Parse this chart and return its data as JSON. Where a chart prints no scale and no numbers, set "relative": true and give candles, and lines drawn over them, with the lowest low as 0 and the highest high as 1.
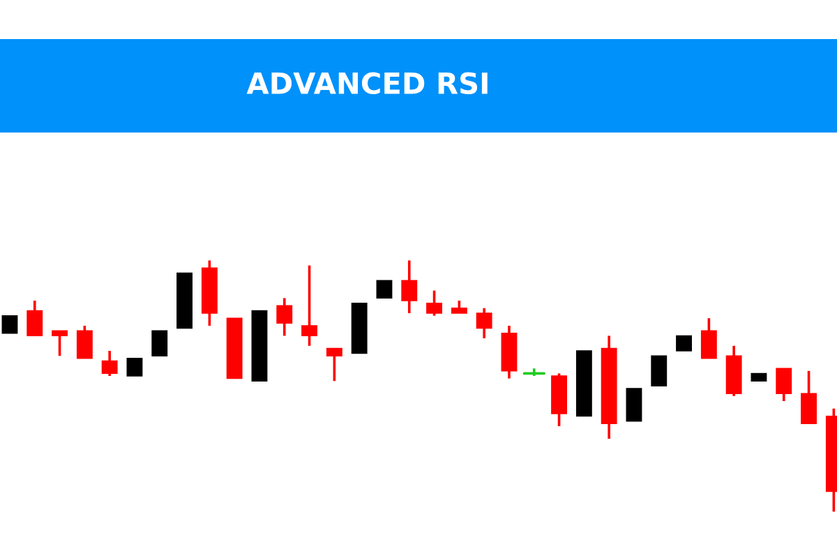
{
  "chart_data": {
    "type": "candlestick",
    "title": "ADVANCED RSI",
    "relative": true,
    "categories": [
      null,
      null,
      null,
      null,
      null,
      null,
      null,
      null,
      null,
      null,
      null,
      null,
      null,
      null,
      null,
      null,
      null,
      null,
      null,
      null,
      null,
      null,
      null,
      null,
      null,
      null,
      null,
      null,
      null,
      null,
      null,
      null,
      null,
      null
    ],
    "ohlc": [
      [
        0.71,
        0.78,
        0.71,
        0.78
      ],
      [
        0.8,
        0.84,
        0.7,
        0.7
      ],
      [
        0.72,
        0.72,
        0.62,
        0.7
      ],
      [
        0.72,
        0.74,
        0.61,
        0.61
      ],
      [
        0.6,
        0.64,
        0.54,
        0.55
      ],
      [
        0.54,
        0.61,
        0.54,
        0.61
      ],
      [
        0.62,
        0.72,
        0.62,
        0.72
      ],
      [
        0.73,
        0.95,
        0.73,
        0.95
      ],
      [
        0.97,
        1,
        0.74,
        0.79
      ],
      [
        0.77,
        0.77,
        0.53,
        0.53
      ],
      [
        0.52,
        0.8,
        0.52,
        0.8
      ],
      [
        0.82,
        0.85,
        0.7,
        0.75
      ],
      [
        0.74,
        0.98,
        0.66,
        0.7
      ],
      [
        0.65,
        0.65,
        0.52,
        0.62
      ],
      [
        0.63,
        0.83,
        0.63,
        0.83
      ],
      [
        0.85,
        0.92,
        0.85,
        0.92
      ],
      [
        0.92,
        1,
        0.79,
        0.84
      ],
      [
        0.83,
        0.88,
        0.78,
        0.79
      ],
      [
        0.81,
        0.84,
        0.79,
        0.79
      ],
      [
        0.79,
        0.81,
        0.69,
        0.73
      ],
      [
        0.71,
        0.74,
        0.53,
        0.56
      ],
      [
        0.55,
        0.57,
        0.54,
        0.55
      ],
      [
        0.54,
        0.55,
        0.34,
        0.39
      ],
      [
        0.38,
        0.64,
        0.38,
        0.64
      ],
      [
        0.65,
        0.7,
        0.29,
        0.35
      ],
      [
        0.36,
        0.49,
        0.36,
        0.49
      ],
      [
        0.5,
        0.62,
        0.5,
        0.62
      ],
      [
        0.64,
        0.7,
        0.64,
        0.7
      ],
      [
        0.72,
        0.77,
        0.61,
        0.61
      ],
      [
        0.62,
        0.66,
        0.46,
        0.47
      ],
      [
        0.52,
        0.55,
        0.52,
        0.55
      ],
      [
        0.57,
        0.57,
        0.44,
        0.47
      ],
      [
        0.47,
        0.56,
        0.35,
        0.35
      ],
      [
        0.38,
        0.41,
        0,
        0.08
      ]
    ],
    "colors": [
      "#000000",
      "#ff0000",
      "#ff0000",
      "#ff0000",
      "#ff0000",
      "#000000",
      "#000000",
      "#000000",
      "#ff0000",
      "#ff0000",
      "#000000",
      "#ff0000",
      "#ff0000",
      "#ff0000",
      "#000000",
      "#000000",
      "#ff0000",
      "#ff0000",
      "#ff0000",
      "#ff0000",
      "#ff0000",
      "#22cc22",
      "#ff0000",
      "#000000",
      "#ff0000",
      "#000000",
      "#000000",
      "#000000",
      "#ff0000",
      "#ff0000",
      "#000000",
      "#ff0000",
      "#ff0000",
      "#ff0000"
    ]
  }
}
